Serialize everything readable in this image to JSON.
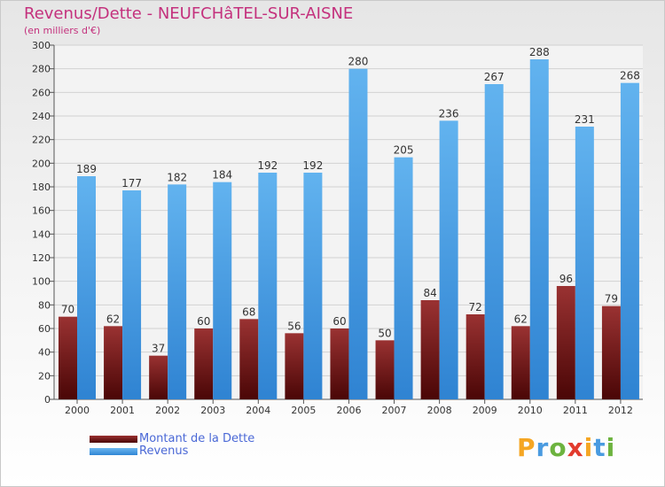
{
  "title": "Revenus/Dette - NEUFCHâTEL-SUR-AISNE",
  "subtitle": "(en milliers d'€)",
  "chart_data": {
    "type": "bar",
    "categories": [
      "2000",
      "2001",
      "2002",
      "2003",
      "2004",
      "2005",
      "2006",
      "2007",
      "2008",
      "2009",
      "2010",
      "2011",
      "2012"
    ],
    "series": [
      {
        "name": "Montant de la Dette",
        "values": [
          70,
          62,
          37,
          60,
          68,
          56,
          60,
          50,
          84,
          72,
          62,
          96,
          79
        ],
        "color": "#7b1a1a"
      },
      {
        "name": "Revenus",
        "values": [
          189,
          177,
          182,
          184,
          192,
          192,
          280,
          205,
          236,
          267,
          288,
          231,
          268
        ],
        "color": "#4a9be0"
      }
    ],
    "ylim": [
      0,
      300
    ],
    "yticks": [
      0,
      20,
      40,
      60,
      80,
      100,
      120,
      140,
      160,
      180,
      200,
      220,
      240,
      260,
      280,
      300
    ],
    "grid": true,
    "legend_position": "bottom-left"
  },
  "legend": {
    "items": [
      {
        "label": "Montant de la Dette",
        "color": "#5a0a0a"
      },
      {
        "label": "Revenus",
        "color": "#4a9be0"
      }
    ]
  },
  "logo": {
    "letters": [
      "P",
      "r",
      "o",
      "x",
      "i",
      "t",
      "i"
    ],
    "colors": [
      "#f5a623",
      "#4a9be0",
      "#6db33f",
      "#e23b2e",
      "#f5a623",
      "#4a9be0",
      "#6db33f"
    ]
  }
}
